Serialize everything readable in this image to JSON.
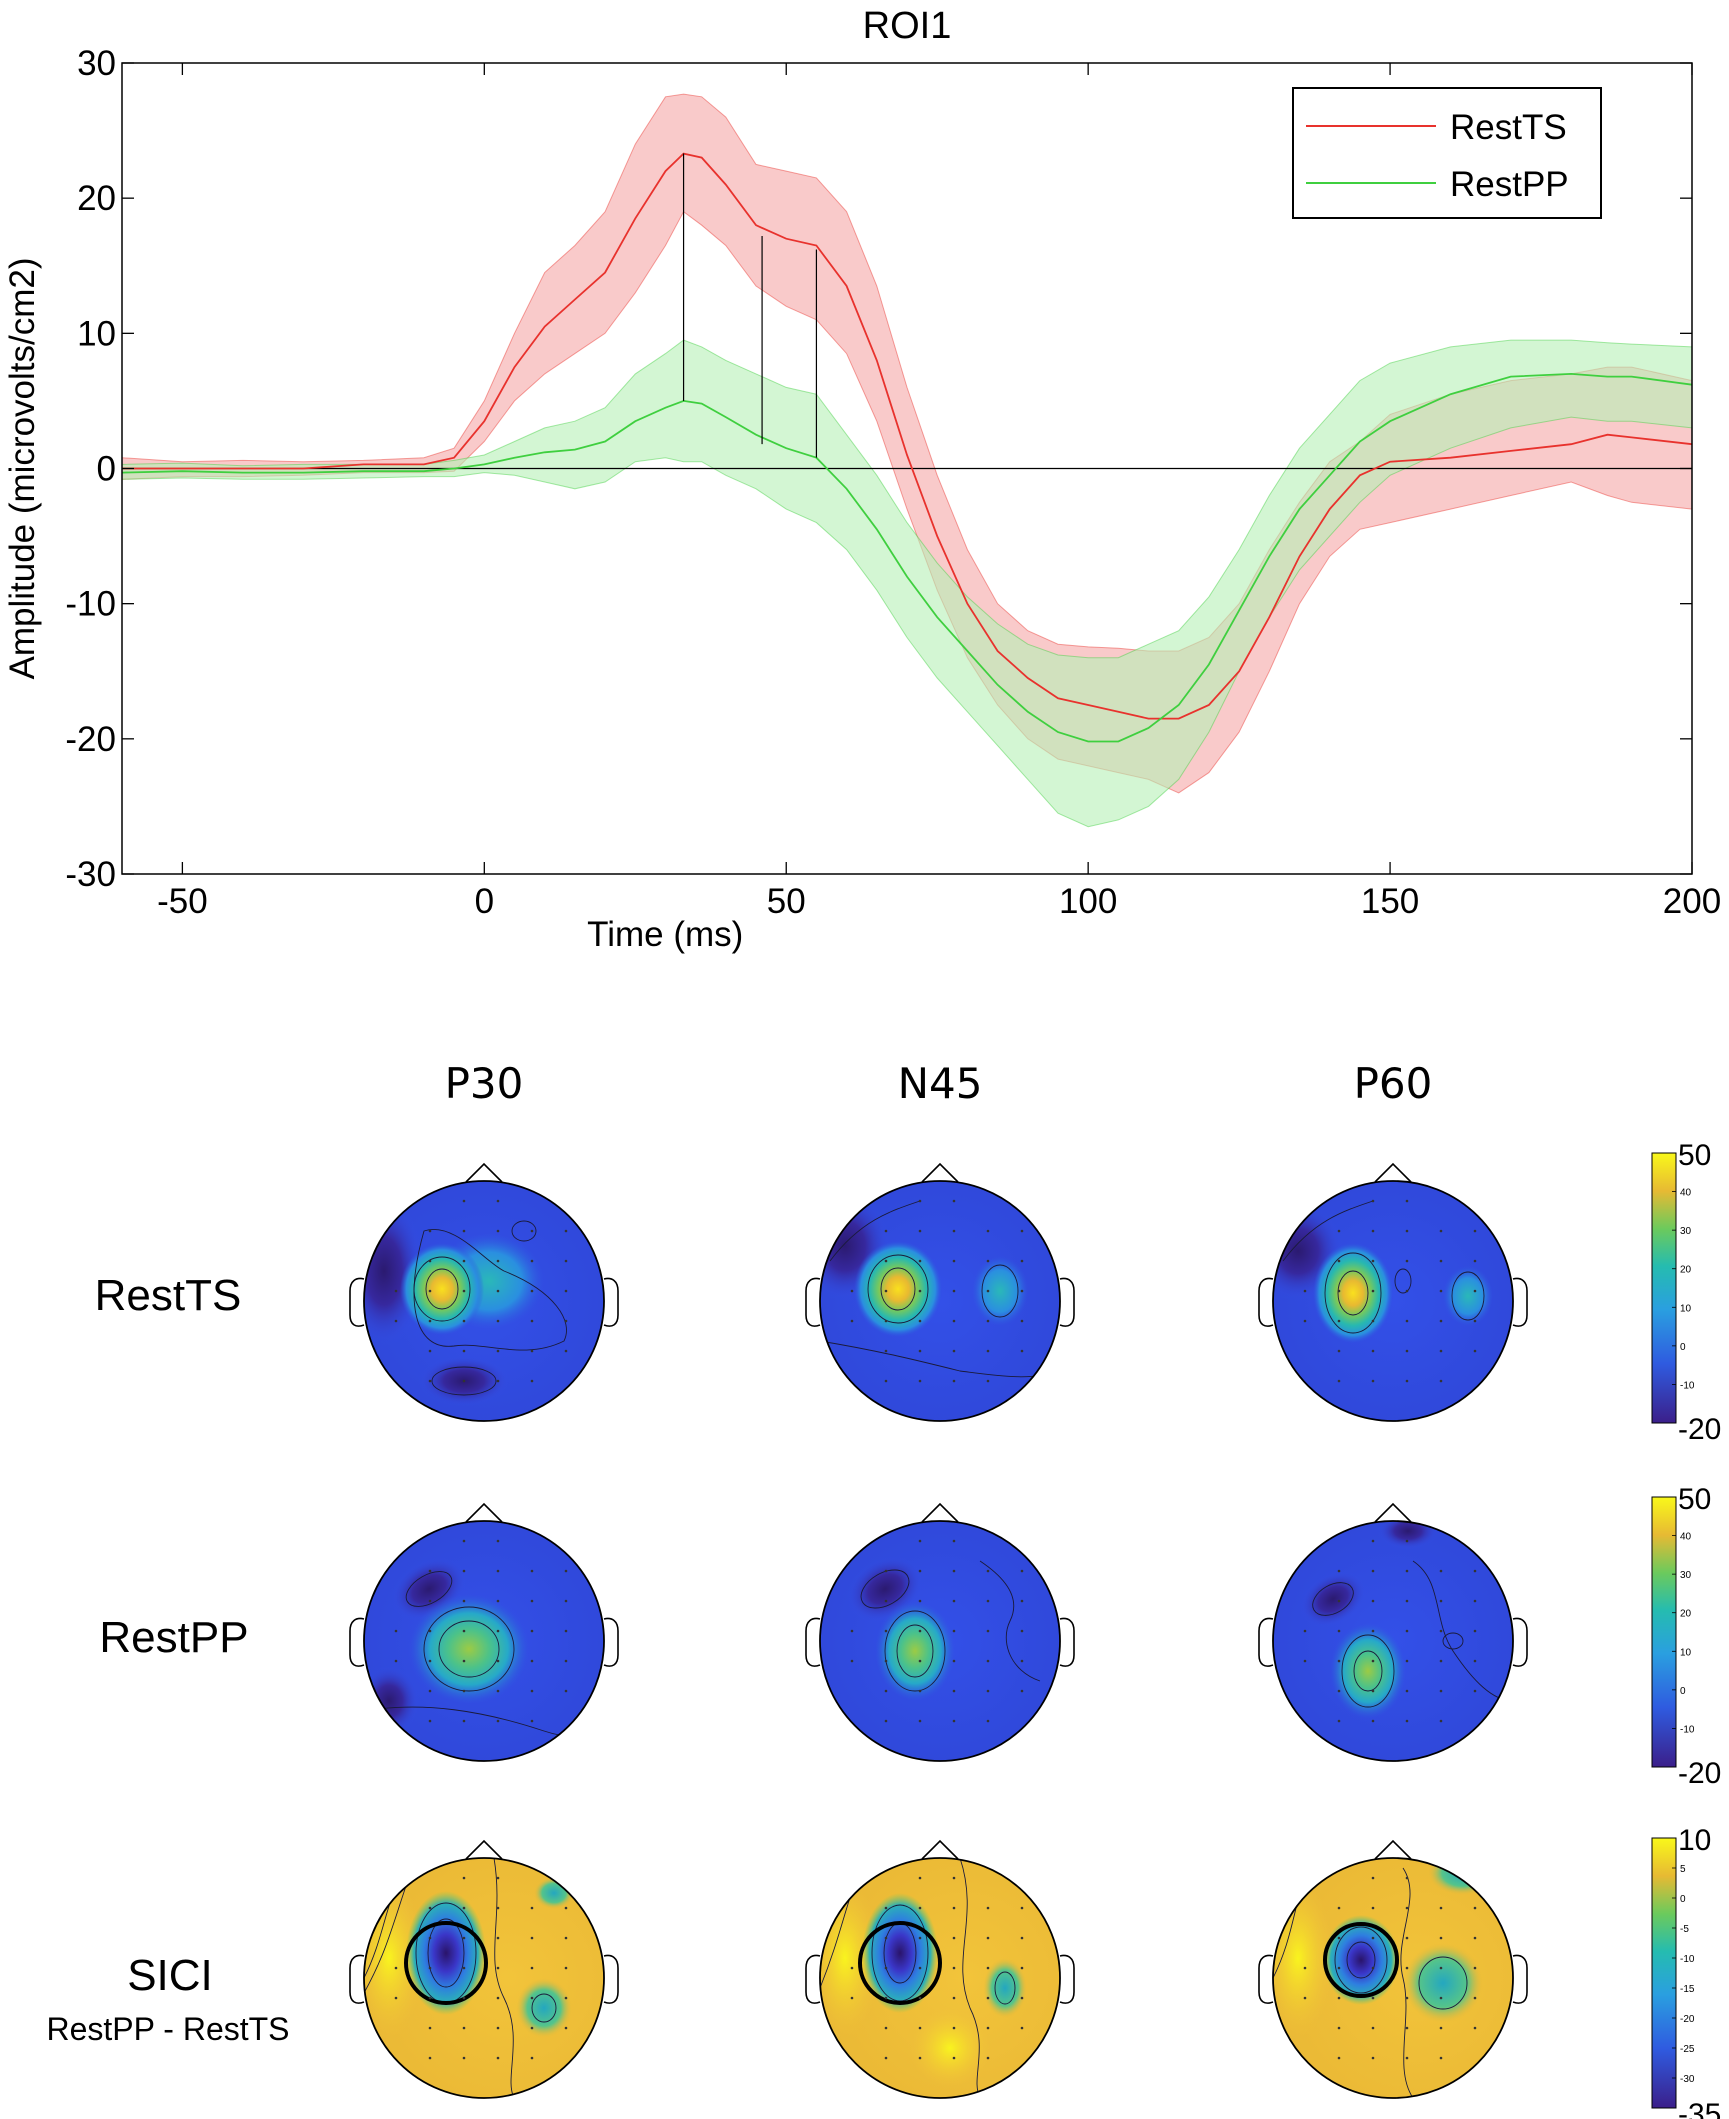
{
  "chart_data": [
    {
      "type": "line",
      "title": "ROI1",
      "xlabel": "Time (ms)",
      "ylabel": "Amplitude (microvolts/cm2)",
      "xlim": [
        -60,
        200
      ],
      "ylim": [
        -30,
        30
      ],
      "xticks": [
        -50,
        0,
        50,
        100,
        150,
        200
      ],
      "yticks": [
        -30,
        -20,
        -10,
        0,
        10,
        20,
        30
      ],
      "legend_position": "top-right",
      "zero_line": 0,
      "marker_lines": [
        {
          "x": 33,
          "y_top": 23.3,
          "y_bottom": 5.0
        },
        {
          "x": 46,
          "y_top": 17.2,
          "y_bottom": 1.8
        },
        {
          "x": 55,
          "y_top": 16.2,
          "y_bottom": 0.8
        }
      ],
      "series": [
        {
          "name": "RestTS",
          "color": "#e8322d",
          "band_color": "#f5a6a6",
          "x": [
            -60,
            -50,
            -40,
            -30,
            -20,
            -10,
            -5,
            0,
            5,
            10,
            15,
            20,
            25,
            30,
            33,
            36,
            40,
            45,
            50,
            55,
            60,
            65,
            70,
            75,
            80,
            85,
            90,
            95,
            100,
            105,
            110,
            115,
            120,
            125,
            130,
            135,
            140,
            145,
            150,
            160,
            170,
            180,
            186,
            190,
            200
          ],
          "mean": [
            0,
            0,
            0,
            0,
            0.3,
            0.3,
            0.8,
            3.5,
            7.5,
            10.5,
            12.5,
            14.5,
            18.5,
            22.0,
            23.3,
            23.0,
            21.0,
            18.0,
            17.0,
            16.5,
            13.5,
            8.0,
            1.0,
            -5.0,
            -10.0,
            -13.5,
            -15.5,
            -17.0,
            -17.5,
            -18.0,
            -18.5,
            -18.5,
            -17.5,
            -15.0,
            -11.0,
            -6.5,
            -3.0,
            -0.5,
            0.5,
            0.8,
            1.3,
            1.8,
            2.5,
            2.3,
            1.8
          ],
          "upper": [
            0.8,
            0.5,
            0.6,
            0.5,
            0.6,
            0.8,
            1.5,
            5.0,
            10.0,
            14.5,
            16.5,
            19.0,
            24.0,
            27.5,
            27.7,
            27.5,
            26.0,
            22.5,
            22.0,
            21.5,
            19.0,
            13.5,
            6.0,
            -0.5,
            -6.0,
            -10.0,
            -12.0,
            -13.0,
            -13.2,
            -13.3,
            -13.5,
            -13.5,
            -12.5,
            -10.0,
            -6.0,
            -2.5,
            0.5,
            2.0,
            4.0,
            5.5,
            6.5,
            7.0,
            7.5,
            7.5,
            6.5
          ],
          "lower": [
            -0.8,
            -0.6,
            -0.6,
            -0.5,
            -0.3,
            -0.3,
            -0.2,
            2.0,
            5.0,
            7.0,
            8.5,
            10.0,
            13.0,
            16.5,
            19.0,
            18.0,
            16.5,
            13.5,
            12.0,
            11.0,
            8.5,
            3.5,
            -3.0,
            -9.0,
            -14.0,
            -17.5,
            -20.0,
            -21.5,
            -22.0,
            -22.5,
            -23.0,
            -24.0,
            -22.5,
            -19.5,
            -15.0,
            -10.0,
            -6.5,
            -4.5,
            -4.0,
            -3.0,
            -2.0,
            -1.0,
            -2.0,
            -2.5,
            -3.0
          ]
        },
        {
          "name": "RestPP",
          "color": "#3fcf3f",
          "band_color": "#b5f0b5",
          "x": [
            -60,
            -50,
            -40,
            -30,
            -20,
            -10,
            -5,
            0,
            5,
            10,
            15,
            20,
            25,
            30,
            33,
            36,
            40,
            45,
            50,
            55,
            60,
            65,
            70,
            75,
            80,
            85,
            90,
            95,
            100,
            105,
            110,
            115,
            120,
            125,
            130,
            135,
            140,
            145,
            150,
            160,
            170,
            180,
            186,
            190,
            200
          ],
          "mean": [
            -0.3,
            -0.2,
            -0.3,
            -0.3,
            -0.2,
            -0.2,
            0,
            0.3,
            0.8,
            1.2,
            1.4,
            2.0,
            3.5,
            4.5,
            5.0,
            4.8,
            3.8,
            2.5,
            1.5,
            0.8,
            -1.5,
            -4.5,
            -8.0,
            -11.0,
            -13.5,
            -16.0,
            -18.0,
            -19.5,
            -20.2,
            -20.2,
            -19.2,
            -17.5,
            -14.5,
            -10.5,
            -6.5,
            -3.0,
            -0.5,
            2.0,
            3.5,
            5.5,
            6.8,
            7.0,
            6.8,
            6.8,
            6.2
          ],
          "upper": [
            0.3,
            0.4,
            0.2,
            0.3,
            0.3,
            0.3,
            0.6,
            1.0,
            2.0,
            3.0,
            3.5,
            4.5,
            7.0,
            8.5,
            9.5,
            9.0,
            8.0,
            7.0,
            6.0,
            5.5,
            2.5,
            -0.5,
            -4.0,
            -7.0,
            -9.5,
            -11.5,
            -13.0,
            -13.8,
            -14.0,
            -14.0,
            -13.0,
            -12.0,
            -9.5,
            -6.0,
            -2.0,
            1.5,
            4.0,
            6.5,
            7.8,
            9.0,
            9.5,
            9.5,
            9.3,
            9.2,
            9.0
          ],
          "lower": [
            -0.8,
            -0.7,
            -0.8,
            -0.8,
            -0.7,
            -0.6,
            -0.6,
            -0.3,
            -0.5,
            -1.0,
            -1.5,
            -1.0,
            0.5,
            0.8,
            0.5,
            0.5,
            -0.5,
            -1.5,
            -3.0,
            -4.0,
            -6.0,
            -9.0,
            -12.5,
            -15.5,
            -18.0,
            -20.5,
            -23.0,
            -25.5,
            -26.5,
            -26.0,
            -25.0,
            -23.0,
            -19.5,
            -15.0,
            -11.0,
            -7.5,
            -5.0,
            -2.5,
            -0.5,
            1.5,
            3.0,
            3.8,
            3.5,
            3.5,
            3.0
          ]
        }
      ]
    },
    {
      "type": "heatmap",
      "subtype": "scalp topography grid",
      "columns": [
        "P30",
        "N45",
        "P60"
      ],
      "rows": [
        {
          "label": "RestTS",
          "sublabel": "",
          "colorbar": {
            "max_label": "50",
            "min_label": "-20",
            "ticks": [
              "40",
              "30",
              "20",
              "10",
              "0",
              "-10"
            ]
          }
        },
        {
          "label": "RestPP",
          "sublabel": "",
          "colorbar": {
            "max_label": "50",
            "min_label": "-20",
            "ticks": [
              "40",
              "30",
              "20",
              "10",
              "0",
              "-10"
            ]
          }
        },
        {
          "label": "SICI",
          "sublabel": "RestPP - RestTS",
          "colorbar": {
            "max_label": "10",
            "min_label": "-35",
            "ticks": [
              "5",
              "0",
              "-5",
              "-10",
              "-15",
              "-20",
              "-25",
              "-30"
            ]
          }
        }
      ]
    }
  ]
}
